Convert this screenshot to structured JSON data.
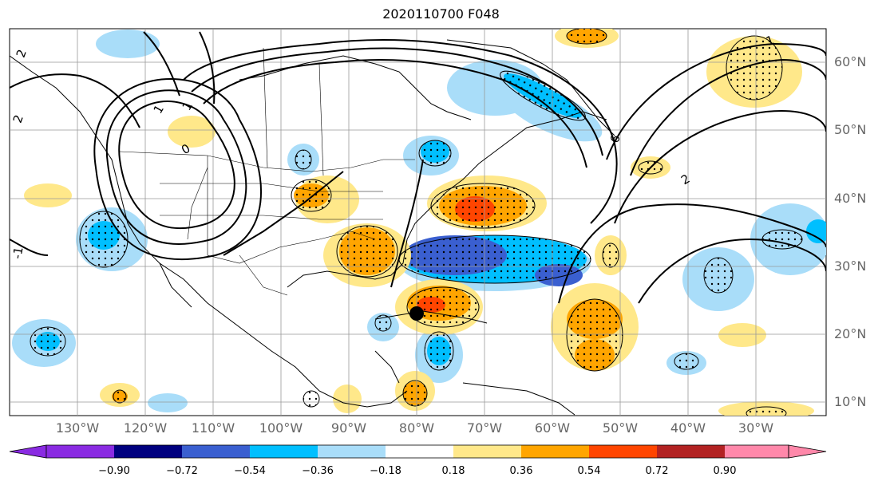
{
  "title": "2020110700 F048",
  "lat_labels": [
    "60°N",
    "50°N",
    "40°N",
    "30°N",
    "20°N",
    "10°N"
  ],
  "lon_labels": [
    "130°W",
    "120°W",
    "110°W",
    "100°W",
    "90°W",
    "80°W",
    "70°W",
    "60°W",
    "50°W",
    "40°W",
    "30°W"
  ],
  "colorbar": {
    "ticks": [
      "−0.90",
      "−0.72",
      "−0.54",
      "−0.36",
      "−0.18",
      "0.18",
      "0.36",
      "0.54",
      "0.72",
      "0.90"
    ],
    "colors": [
      "#8a2be2",
      "#00007f",
      "#3a5fd0",
      "#00bfff",
      "#a9ddf9",
      "#ffffff",
      "#ffe88a",
      "#ffa500",
      "#ff4500",
      "#b22222",
      "#ff88aa"
    ]
  },
  "contour_labels": [
    "2",
    "2",
    "1",
    "1",
    "-1",
    "0",
    "6",
    "2",
    "1"
  ],
  "storm_marker": {
    "lon": -82.5,
    "lat": 23
  }
}
